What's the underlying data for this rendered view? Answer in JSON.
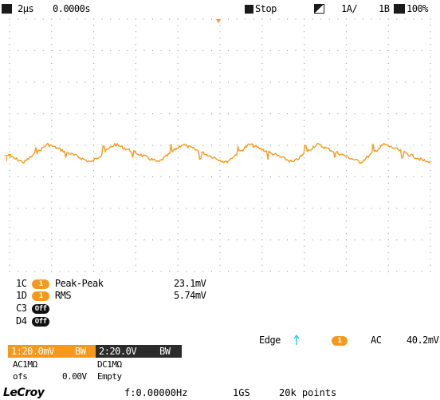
{
  "topbar": {
    "timebase": "2μs",
    "delay": "0.0000s",
    "stop_label": "Stop",
    "trigger_level": "1A/",
    "zoom_label": "1B",
    "percent": "100%"
  },
  "trigger_level_marker": "T",
  "measurements": [
    {
      "source": "1C",
      "name": "Peak-Peak",
      "value": "23.1mV"
    },
    {
      "source": "1D",
      "name": "RMS",
      "value": "5.74mV"
    },
    {
      "source": "C3",
      "name": "",
      "value": ""
    },
    {
      "source": "D4",
      "name": "",
      "value": ""
    }
  ],
  "channel_pill_on": "1",
  "channel_pill_off": "Off",
  "trigger_info": {
    "edge_label": "Edge",
    "coupling": "AC",
    "level": "40.2mV",
    "channel": "1"
  },
  "channel1": {
    "scale": "1:20.0mV",
    "bw": "BW",
    "coupling": "AC1MΩ",
    "offset_label": "ofs",
    "offset_value": "0.00V"
  },
  "channel2": {
    "scale": "2:20.0V",
    "bw": "BW",
    "coupling": "DC1MΩ",
    "status": "Empty"
  },
  "bottombar": {
    "logo": "LeCroy",
    "frequency": "f:0.00000Hz",
    "sample_rate": "1GS",
    "points": "20k points"
  },
  "waveform": {
    "color": "#f39a1e",
    "period_divisions": 1.6,
    "amplitude_mv": 11.5,
    "volts_per_div_mv": 20
  },
  "colors": {
    "trace": "#f39a1e",
    "grid": "#8c8c8c",
    "trigger_marker": "#f39a1e",
    "trigger_edge": "#2ec5ff"
  }
}
